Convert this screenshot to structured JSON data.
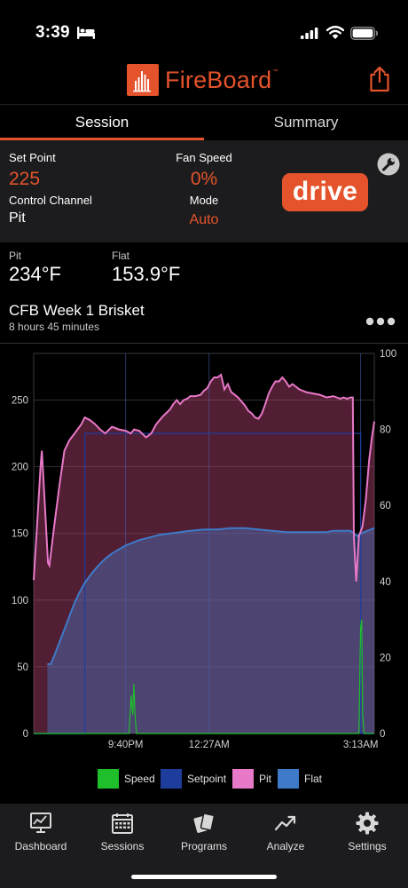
{
  "status_bar": {
    "time": "3:39"
  },
  "brand": {
    "name": "FireBoard",
    "tm": "™"
  },
  "tabs": [
    {
      "label": "Session"
    },
    {
      "label": "Summary"
    }
  ],
  "control": {
    "set_point_label": "Set Point",
    "set_point_value": "225",
    "fan_speed_label": "Fan Speed",
    "fan_speed_value": "0%",
    "control_channel_label": "Control Channel",
    "control_channel_value": "Pit",
    "mode_label": "Mode",
    "mode_value": "Auto",
    "drive_label": "drive"
  },
  "readings": [
    {
      "label": "Pit",
      "value": "234°F"
    },
    {
      "label": "Flat",
      "value": "153.9°F"
    }
  ],
  "session": {
    "title": "CFB Week 1 Brisket",
    "duration": "8 hours 45 minutes"
  },
  "chart_data": {
    "type": "line",
    "x_tick_labels": [
      "9:40PM",
      "12:27AM",
      "3:13AM"
    ],
    "y_left": {
      "ticks": [
        0,
        50,
        100,
        150,
        200,
        250
      ],
      "range": [
        0,
        285
      ]
    },
    "y_right": {
      "ticks": [
        0,
        20,
        40,
        60,
        80,
        100
      ],
      "range": [
        0,
        100
      ]
    },
    "x_range": [
      0,
      100
    ],
    "grid": true,
    "legend_position": "bottom",
    "series": [
      {
        "name": "Speed",
        "axis": "right",
        "color": "#1fbf2c",
        "points": [
          [
            0,
            0
          ],
          [
            28,
            0
          ],
          [
            28.6,
            10
          ],
          [
            29.1,
            5
          ],
          [
            29.4,
            13
          ],
          [
            29.8,
            4
          ],
          [
            30.2,
            0
          ],
          [
            95.5,
            0
          ],
          [
            96,
            28
          ],
          [
            96.3,
            30
          ],
          [
            96.6,
            5
          ],
          [
            97,
            0
          ],
          [
            100,
            0
          ]
        ]
      },
      {
        "name": "Setpoint",
        "axis": "left",
        "color": "#1e3c9c",
        "points": [
          [
            0,
            0
          ],
          [
            15,
            0
          ],
          [
            15,
            225
          ],
          [
            96,
            225
          ],
          [
            96,
            0
          ],
          [
            100,
            0
          ]
        ]
      },
      {
        "name": "Pit",
        "axis": "left",
        "color": "#e878c8",
        "points": [
          [
            0,
            115
          ],
          [
            1.2,
            165
          ],
          [
            2,
            200
          ],
          [
            2.4,
            212
          ],
          [
            3.2,
            175
          ],
          [
            4.2,
            128
          ],
          [
            4.6,
            126
          ],
          [
            6,
            155
          ],
          [
            7.5,
            185
          ],
          [
            9,
            212
          ],
          [
            10.5,
            220
          ],
          [
            12,
            225
          ],
          [
            14,
            232
          ],
          [
            15,
            237
          ],
          [
            16.5,
            235
          ],
          [
            18,
            232
          ],
          [
            19.5,
            228
          ],
          [
            21,
            225
          ],
          [
            23,
            230
          ],
          [
            25,
            228
          ],
          [
            27,
            227
          ],
          [
            28.5,
            225
          ],
          [
            29.5,
            228
          ],
          [
            31,
            227
          ],
          [
            33,
            222
          ],
          [
            34.5,
            225
          ],
          [
            36,
            232
          ],
          [
            38,
            238
          ],
          [
            40,
            243
          ],
          [
            41,
            247
          ],
          [
            42,
            250
          ],
          [
            43,
            247
          ],
          [
            44,
            250
          ],
          [
            45,
            251
          ],
          [
            46,
            253
          ],
          [
            47.5,
            253
          ],
          [
            49,
            254
          ],
          [
            50,
            257
          ],
          [
            51,
            259
          ],
          [
            52,
            264
          ],
          [
            53,
            267
          ],
          [
            54,
            267
          ],
          [
            55,
            269
          ],
          [
            56,
            258
          ],
          [
            57,
            262
          ],
          [
            58,
            256
          ],
          [
            59,
            254
          ],
          [
            60,
            252
          ],
          [
            62,
            246
          ],
          [
            63,
            242
          ],
          [
            64,
            240
          ],
          [
            65,
            237
          ],
          [
            66,
            236
          ],
          [
            67,
            240
          ],
          [
            68,
            247
          ],
          [
            69,
            255
          ],
          [
            70,
            260
          ],
          [
            71,
            264
          ],
          [
            72,
            264
          ],
          [
            73,
            267
          ],
          [
            74,
            264
          ],
          [
            75,
            260
          ],
          [
            76,
            262
          ],
          [
            78,
            258
          ],
          [
            80,
            256
          ],
          [
            82,
            255
          ],
          [
            84,
            254
          ],
          [
            86,
            252
          ],
          [
            88,
            253
          ],
          [
            90,
            251
          ],
          [
            91,
            252
          ],
          [
            92,
            251
          ],
          [
            93,
            252
          ],
          [
            93.7,
            252
          ],
          [
            94,
            147
          ],
          [
            94.7,
            114
          ],
          [
            95.5,
            148
          ],
          [
            96.5,
            155
          ],
          [
            97.5,
            175
          ],
          [
            98.5,
            205
          ],
          [
            99.3,
            222
          ],
          [
            100,
            234
          ]
        ]
      },
      {
        "name": "Flat",
        "axis": "left",
        "color": "#3e7ac8",
        "points": [
          [
            4,
            52
          ],
          [
            5,
            52
          ],
          [
            6,
            58
          ],
          [
            7.5,
            68
          ],
          [
            9,
            78
          ],
          [
            10.5,
            88
          ],
          [
            12,
            98
          ],
          [
            13.5,
            106
          ],
          [
            15,
            113
          ],
          [
            17,
            120
          ],
          [
            19,
            126
          ],
          [
            21,
            131
          ],
          [
            23,
            135
          ],
          [
            25,
            138
          ],
          [
            27,
            141
          ],
          [
            29,
            143
          ],
          [
            31,
            145
          ],
          [
            34,
            147
          ],
          [
            37,
            149
          ],
          [
            40,
            150
          ],
          [
            43,
            151
          ],
          [
            46,
            152
          ],
          [
            50,
            153
          ],
          [
            54,
            153
          ],
          [
            58,
            154
          ],
          [
            62,
            154
          ],
          [
            66,
            153
          ],
          [
            70,
            152
          ],
          [
            74,
            151
          ],
          [
            78,
            151
          ],
          [
            82,
            151
          ],
          [
            86,
            151
          ],
          [
            88,
            152
          ],
          [
            90,
            152
          ],
          [
            91,
            152
          ],
          [
            92,
            152
          ],
          [
            93,
            152
          ],
          [
            94,
            150
          ],
          [
            95,
            148
          ],
          [
            96,
            150
          ],
          [
            97,
            151
          ],
          [
            98,
            152
          ],
          [
            99,
            153
          ],
          [
            100,
            154
          ]
        ]
      }
    ]
  },
  "nav": [
    {
      "label": "Dashboard"
    },
    {
      "label": "Sessions"
    },
    {
      "label": "Programs"
    },
    {
      "label": "Analyze"
    },
    {
      "label": "Settings"
    }
  ]
}
